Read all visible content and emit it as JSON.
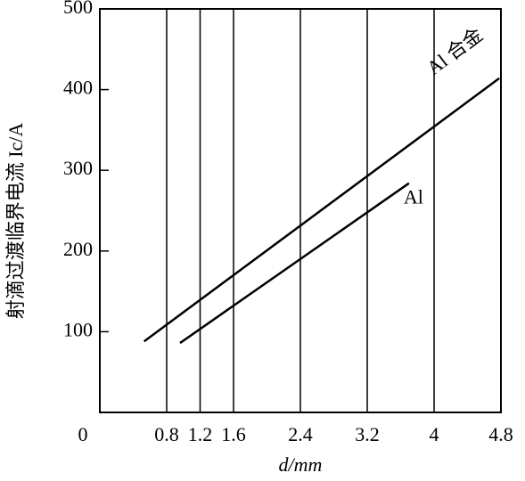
{
  "chart_data": {
    "type": "line",
    "x_label": "d/mm",
    "y_label": "射滴过渡临界电流 Ic/A",
    "xlim": [
      0,
      4.8
    ],
    "ylim": [
      0,
      500
    ],
    "xticks": [
      0,
      0.8,
      1.2,
      1.6,
      2.4,
      3.2,
      4.0,
      4.8
    ],
    "yticks": [
      100,
      200,
      300,
      400,
      500
    ],
    "xticks_display": [
      {
        "value": 4.0,
        "label": "4.0"
      }
    ],
    "grid": "x",
    "series": [
      {
        "name": "Al 合金",
        "color": "#000000",
        "x": [
          0.53,
          4.78
        ],
        "values": [
          88,
          414
        ]
      },
      {
        "name": "Al",
        "color": "#000000",
        "x": [
          0.96,
          3.7
        ],
        "values": [
          86,
          284
        ]
      }
    ]
  }
}
